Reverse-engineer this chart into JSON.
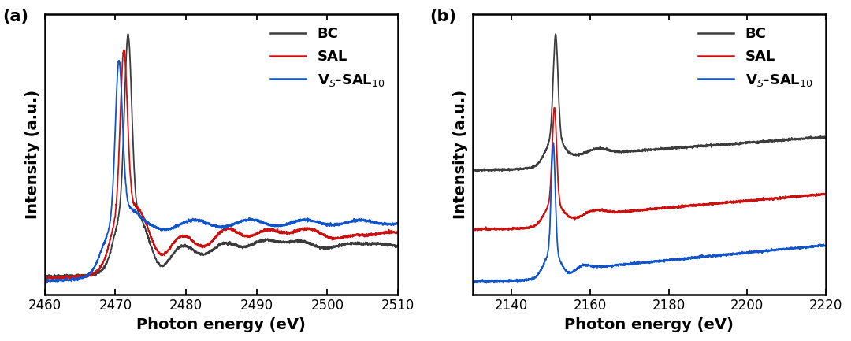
{
  "panel_a": {
    "xlim": [
      2460,
      2510
    ],
    "xlabel": "Photon energy (eV)",
    "ylabel": "Intensity (a.u.)",
    "label": "(a)",
    "xticks": [
      2460,
      2470,
      2480,
      2490,
      2500,
      2510
    ],
    "colors": [
      "#3d3d3d",
      "#cc1111",
      "#1155cc"
    ]
  },
  "panel_b": {
    "xlim": [
      2130,
      2220
    ],
    "xlabel": "Photon energy (eV)",
    "ylabel": "Intensity (a.u.)",
    "label": "(b)",
    "xticks": [
      2140,
      2160,
      2180,
      2200,
      2220
    ],
    "colors": [
      "#3d3d3d",
      "#cc1111",
      "#1155cc"
    ]
  },
  "legend_labels": [
    "BC",
    "SAL",
    "V_S-SAL_10"
  ],
  "linewidth": 1.3,
  "tick_fontsize": 12,
  "label_fontsize": 14,
  "legend_fontsize": 13
}
